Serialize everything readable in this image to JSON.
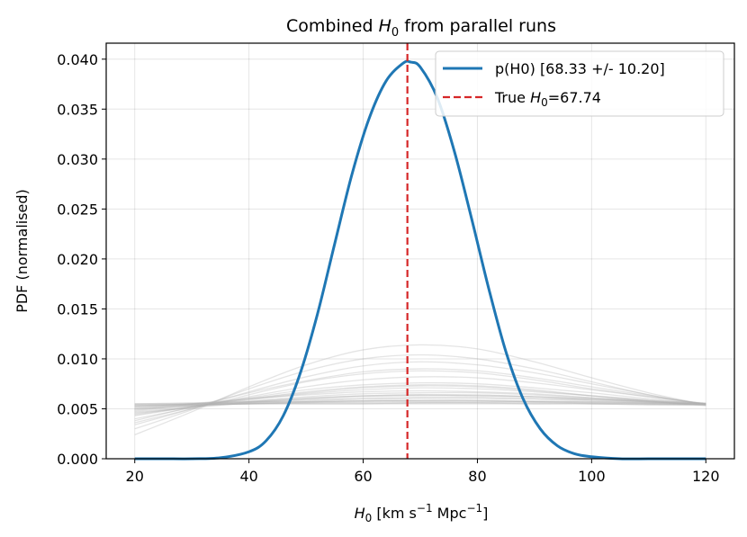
{
  "chart_data": {
    "type": "line",
    "title_prefix": "Combined ",
    "title_symbol": "H",
    "title_sub": "0",
    "title_suffix": " from parallel runs",
    "xlabel_symbol": "H",
    "xlabel_sub": "0",
    "xlabel_units": " [km s",
    "xlabel_exp1": "−1",
    "xlabel_mid": " Mpc",
    "xlabel_exp2": "−1",
    "xlabel_close": "]",
    "ylabel": "PDF (normalised)",
    "xlim": [
      15,
      125
    ],
    "ylim": [
      0,
      0.0416
    ],
    "grid": true,
    "legend_position": "top-right",
    "xticks": [
      20,
      40,
      60,
      80,
      100,
      120
    ],
    "xtick_labels": [
      "20",
      "40",
      "60",
      "80",
      "100",
      "120"
    ],
    "yticks": [
      0.0,
      0.005,
      0.01,
      0.015,
      0.02,
      0.025,
      0.03,
      0.035,
      0.04
    ],
    "ytick_labels": [
      "0.000",
      "0.005",
      "0.010",
      "0.015",
      "0.020",
      "0.025",
      "0.030",
      "0.035",
      "0.040"
    ],
    "combined": {
      "name": "p(H0) [68.33 +/- 10.20]",
      "color": "#1f77b4",
      "x": [
        20,
        25,
        30,
        35,
        40,
        43,
        46,
        49,
        52,
        55,
        58,
        61,
        64,
        67,
        68.33,
        70,
        73,
        76,
        79,
        82,
        85,
        88,
        91,
        94,
        97,
        100,
        105,
        110,
        115,
        120
      ],
      "y": [
        0.0,
        0.0,
        0.0,
        0.0001,
        0.0007,
        0.0018,
        0.0043,
        0.0086,
        0.0145,
        0.0215,
        0.0284,
        0.034,
        0.0378,
        0.0396,
        0.0397,
        0.0392,
        0.0361,
        0.0307,
        0.024,
        0.017,
        0.0107,
        0.006,
        0.003,
        0.0013,
        0.0005,
        0.0002,
        0.0,
        0.0,
        0.0,
        0.0
      ]
    },
    "true_line": {
      "label_prefix": "True ",
      "label_symbol": "H",
      "label_sub": "0",
      "label_suffix": "=67.74",
      "value": 67.74,
      "color": "#d62728"
    },
    "runs": {
      "color": "#b3b3b3",
      "x": [
        20,
        30,
        40,
        50,
        60,
        70,
        80,
        90,
        100,
        110,
        120
      ],
      "series": [
        [
          0.0024,
          0.0047,
          0.0072,
          0.0094,
          0.0109,
          0.0114,
          0.011,
          0.0097,
          0.0081,
          0.0066,
          0.0054
        ],
        [
          0.003,
          0.0049,
          0.007,
          0.0088,
          0.01,
          0.0104,
          0.01,
          0.009,
          0.0077,
          0.0064,
          0.0054
        ],
        [
          0.0034,
          0.005,
          0.0067,
          0.0082,
          0.0093,
          0.0097,
          0.0094,
          0.0086,
          0.0075,
          0.0064,
          0.0054
        ],
        [
          0.0038,
          0.0052,
          0.0066,
          0.0078,
          0.0087,
          0.009,
          0.0088,
          0.0081,
          0.0072,
          0.0063,
          0.0055
        ],
        [
          0.004,
          0.0051,
          0.0062,
          0.0072,
          0.0079,
          0.0082,
          0.0081,
          0.0076,
          0.0069,
          0.0062,
          0.0055
        ],
        [
          0.0043,
          0.0052,
          0.0061,
          0.0069,
          0.0074,
          0.0076,
          0.0075,
          0.0071,
          0.0066,
          0.006,
          0.0055
        ],
        [
          0.0045,
          0.0052,
          0.0059,
          0.0065,
          0.0069,
          0.0071,
          0.007,
          0.0067,
          0.0063,
          0.0059,
          0.0055
        ],
        [
          0.0047,
          0.0052,
          0.0057,
          0.0062,
          0.0065,
          0.0066,
          0.0066,
          0.0064,
          0.0061,
          0.0058,
          0.0055
        ],
        [
          0.0049,
          0.0053,
          0.0057,
          0.006,
          0.0062,
          0.0063,
          0.0063,
          0.0062,
          0.006,
          0.0058,
          0.0056
        ],
        [
          0.005,
          0.0053,
          0.0056,
          0.0058,
          0.006,
          0.0061,
          0.0061,
          0.006,
          0.0059,
          0.0057,
          0.0055
        ],
        [
          0.0051,
          0.0053,
          0.0055,
          0.0057,
          0.0058,
          0.0059,
          0.0059,
          0.0058,
          0.0057,
          0.0056,
          0.0055
        ],
        [
          0.0052,
          0.0054,
          0.0055,
          0.0056,
          0.0057,
          0.0057,
          0.0057,
          0.0057,
          0.0056,
          0.0055,
          0.0054
        ],
        [
          0.0053,
          0.0054,
          0.0055,
          0.0056,
          0.0056,
          0.0056,
          0.0056,
          0.0056,
          0.0055,
          0.0055,
          0.0054
        ],
        [
          0.0054,
          0.0054,
          0.0055,
          0.0055,
          0.0055,
          0.0056,
          0.0056,
          0.0055,
          0.0055,
          0.0054,
          0.0054
        ],
        [
          0.0055,
          0.0055,
          0.0055,
          0.0055,
          0.0055,
          0.0055,
          0.0055,
          0.0055,
          0.0055,
          0.0054,
          0.0054
        ],
        [
          0.0048,
          0.0054,
          0.006,
          0.0066,
          0.0071,
          0.0073,
          0.0072,
          0.0068,
          0.0063,
          0.0058,
          0.0053
        ],
        [
          0.005,
          0.0055,
          0.006,
          0.0064,
          0.0067,
          0.0068,
          0.0067,
          0.0065,
          0.0061,
          0.0057,
          0.0054
        ],
        [
          0.0052,
          0.0055,
          0.0058,
          0.0061,
          0.0063,
          0.0064,
          0.0063,
          0.0062,
          0.0059,
          0.0057,
          0.0054
        ],
        [
          0.0046,
          0.0051,
          0.0056,
          0.006,
          0.0063,
          0.0064,
          0.0064,
          0.0062,
          0.006,
          0.0057,
          0.0055
        ],
        [
          0.0053,
          0.0055,
          0.0057,
          0.0059,
          0.006,
          0.0061,
          0.0061,
          0.006,
          0.0058,
          0.0056,
          0.0054
        ],
        [
          0.0054,
          0.0055,
          0.0056,
          0.0057,
          0.0058,
          0.0058,
          0.0058,
          0.0057,
          0.0056,
          0.0055,
          0.0054
        ],
        [
          0.0055,
          0.0056,
          0.0057,
          0.0057,
          0.0058,
          0.0058,
          0.0058,
          0.0057,
          0.0057,
          0.0056,
          0.0055
        ],
        [
          0.0044,
          0.0052,
          0.006,
          0.0067,
          0.0072,
          0.0074,
          0.0073,
          0.0069,
          0.0063,
          0.0058,
          0.0054
        ],
        [
          0.0036,
          0.005,
          0.0064,
          0.0077,
          0.0085,
          0.0088,
          0.0086,
          0.0079,
          0.007,
          0.0062,
          0.0055
        ]
      ]
    }
  }
}
